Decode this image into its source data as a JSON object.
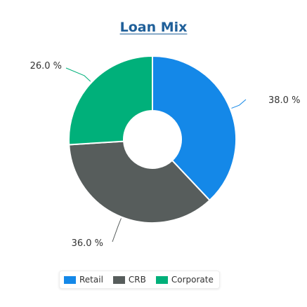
{
  "chart_data": {
    "type": "pie",
    "title": "Loan Mix",
    "donut": true,
    "legend_position": "bottom",
    "slices": [
      {
        "label": "Retail",
        "value": 38.0,
        "display": "38.0 %",
        "color": "#1488e8"
      },
      {
        "label": "CRB",
        "value": 36.0,
        "display": "36.0 %",
        "color": "#575d5c"
      },
      {
        "label": "Corporate",
        "value": 26.0,
        "display": "26.0 %",
        "color": "#00b07a"
      }
    ]
  }
}
